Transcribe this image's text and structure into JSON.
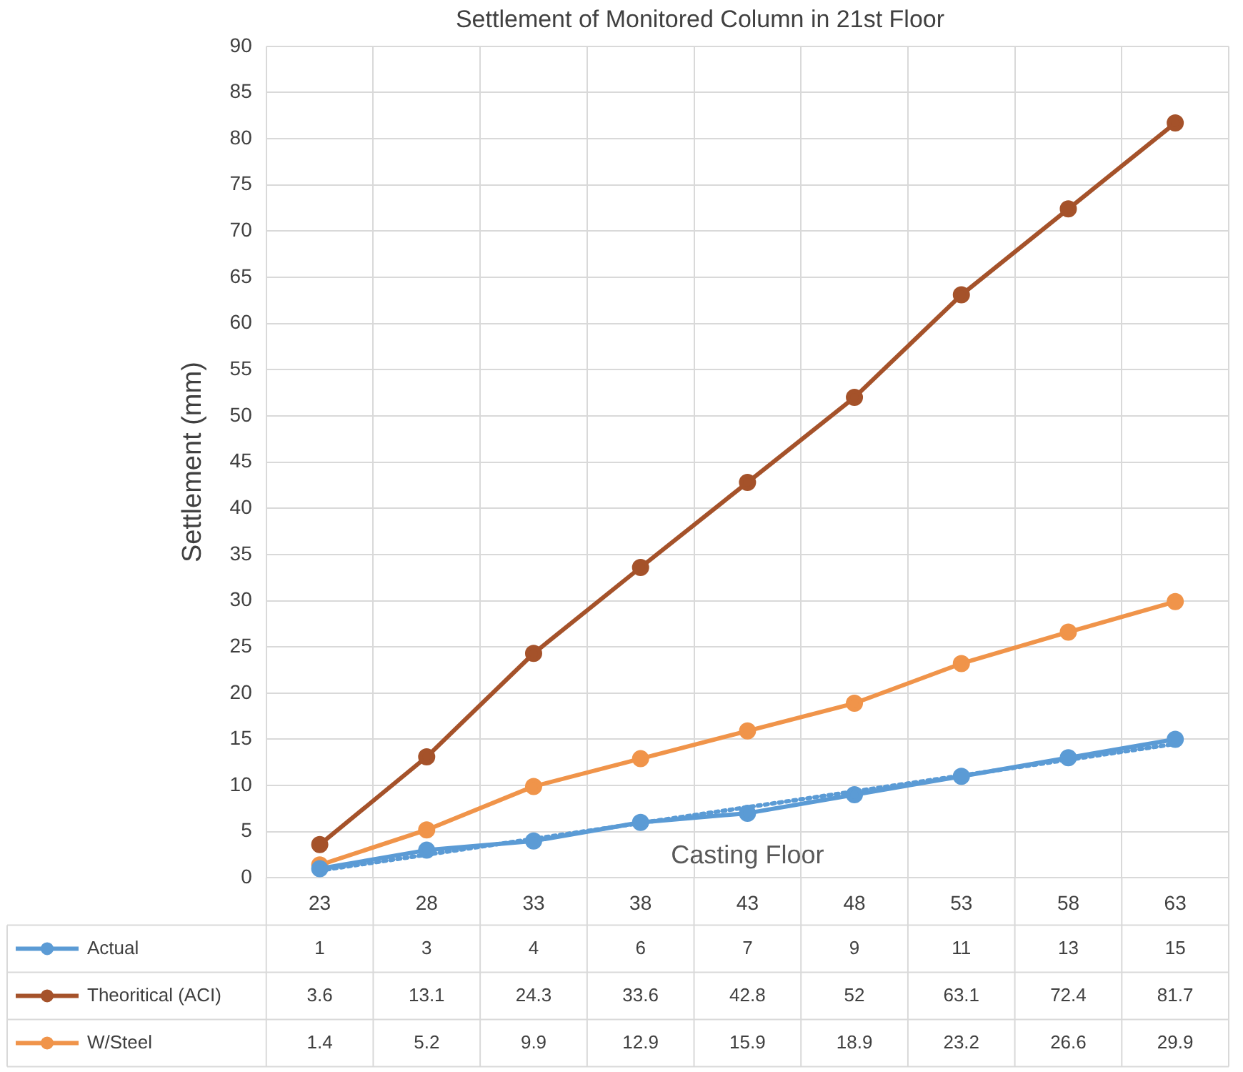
{
  "chart_data": {
    "type": "line",
    "title": "Settlement of Monitored Column in 21st Floor",
    "xlabel": "Casting Floor",
    "ylabel": "Settlement (mm)",
    "categories": [
      "23",
      "28",
      "33",
      "38",
      "43",
      "48",
      "53",
      "58",
      "63"
    ],
    "series": [
      {
        "name": "Actual",
        "color": "#5b9bd5",
        "values": [
          1,
          3,
          4,
          6,
          7,
          9,
          11,
          13,
          15
        ],
        "value_labels": [
          "1",
          "3",
          "4",
          "6",
          "7",
          "9",
          "11",
          "13",
          "15"
        ]
      },
      {
        "name": "Theoritical (ACI)",
        "color": "#a5522a",
        "values": [
          3.6,
          13.1,
          24.3,
          33.6,
          42.8,
          52,
          63.1,
          72.4,
          81.7
        ],
        "value_labels": [
          "3.6",
          "13.1",
          "24.3",
          "33.6",
          "42.8",
          "52",
          "63.1",
          "72.4",
          "81.7"
        ]
      },
      {
        "name": "W/Steel",
        "color": "#f0944a",
        "values": [
          1.4,
          5.2,
          9.9,
          12.9,
          15.9,
          18.9,
          23.2,
          26.6,
          29.9
        ],
        "value_labels": [
          "1.4",
          "5.2",
          "9.9",
          "12.9",
          "15.9",
          "18.9",
          "23.2",
          "26.6",
          "29.9"
        ]
      },
      {
        "type": "line",
        "color": "#5b9bd5",
        "x": [
          "23",
          "63"
        ],
        "values": [
          0.8,
          14.5
        ],
        "line_style": "dotted",
        "marker": "none"
      }
    ],
    "ylim": [
      0,
      90
    ],
    "yticks": [
      0,
      5,
      10,
      15,
      20,
      25,
      30,
      35,
      40,
      45,
      50,
      55,
      60,
      65,
      70,
      75,
      80,
      85,
      90
    ],
    "grid": true,
    "legend": "bottom",
    "marker": "circle",
    "line_style": "solid"
  }
}
